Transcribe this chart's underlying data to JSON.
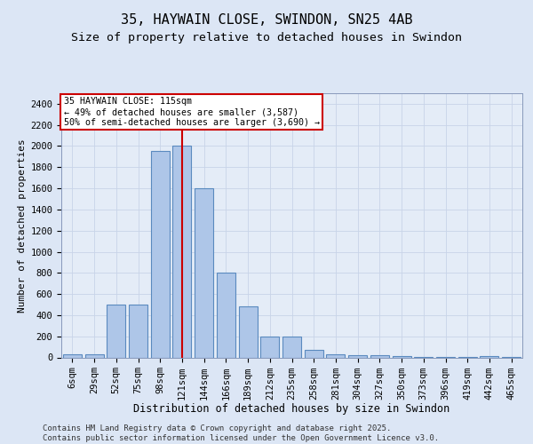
{
  "title1": "35, HAYWAIN CLOSE, SWINDON, SN25 4AB",
  "title2": "Size of property relative to detached houses in Swindon",
  "xlabel": "Distribution of detached houses by size in Swindon",
  "ylabel": "Number of detached properties",
  "categories": [
    "6sqm",
    "29sqm",
    "52sqm",
    "75sqm",
    "98sqm",
    "121sqm",
    "144sqm",
    "166sqm",
    "189sqm",
    "212sqm",
    "235sqm",
    "258sqm",
    "281sqm",
    "304sqm",
    "327sqm",
    "350sqm",
    "373sqm",
    "396sqm",
    "419sqm",
    "442sqm",
    "465sqm"
  ],
  "values": [
    30,
    30,
    500,
    500,
    1950,
    2000,
    1600,
    800,
    480,
    200,
    195,
    70,
    30,
    22,
    18,
    10,
    7,
    5,
    2,
    10,
    5
  ],
  "bar_color": "#aec6e8",
  "bar_edge_color": "#5a8abf",
  "bar_linewidth": 0.8,
  "vline_x_idx": 5,
  "vline_color": "#cc0000",
  "vline_linewidth": 1.5,
  "annotation_line1": "35 HAYWAIN CLOSE: 115sqm",
  "annotation_line2": "← 49% of detached houses are smaller (3,587)",
  "annotation_line3": "50% of semi-detached houses are larger (3,690) →",
  "annotation_box_color": "#cc0000",
  "annotation_box_facecolor": "white",
  "ylim": [
    0,
    2500
  ],
  "yticks": [
    0,
    200,
    400,
    600,
    800,
    1000,
    1200,
    1400,
    1600,
    1800,
    2000,
    2200,
    2400
  ],
  "grid_color": "#c8d4e8",
  "background_color": "#dce6f5",
  "plot_bg_color": "#e4ecf7",
  "footer_line1": "Contains HM Land Registry data © Crown copyright and database right 2025.",
  "footer_line2": "Contains public sector information licensed under the Open Government Licence v3.0.",
  "title1_fontsize": 11,
  "title2_fontsize": 9.5,
  "xlabel_fontsize": 8.5,
  "ylabel_fontsize": 8,
  "tick_fontsize": 7.5,
  "footer_fontsize": 6.5
}
